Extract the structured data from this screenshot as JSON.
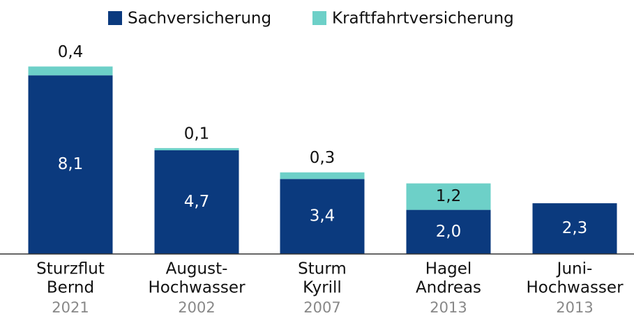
{
  "chart_data": {
    "type": "stacked_bar",
    "categories": [
      [
        "Sturzflut",
        "Bernd"
      ],
      [
        "August-",
        "Hochwasser"
      ],
      [
        "Sturm",
        "Kyrill"
      ],
      [
        "Hagel",
        "Andreas"
      ],
      [
        "Juni-",
        "Hochwasser"
      ]
    ],
    "years": [
      "2021",
      "2002",
      "2007",
      "2013",
      "2013"
    ],
    "series": [
      {
        "name": "Sachversicherung",
        "color": "#0b3a7e",
        "values": [
          8.1,
          4.7,
          3.4,
          2.0,
          2.3
        ],
        "value_labels": [
          "8,1",
          "4,7",
          "3,4",
          "2,0",
          "2,3"
        ]
      },
      {
        "name": "Kraftfahrtversicherung",
        "color": "#6dd0c8",
        "values": [
          0.4,
          0.1,
          0.3,
          1.2,
          null
        ],
        "value_labels": [
          "0,4",
          "0,1",
          "0,3",
          "1,2",
          null
        ]
      }
    ]
  }
}
